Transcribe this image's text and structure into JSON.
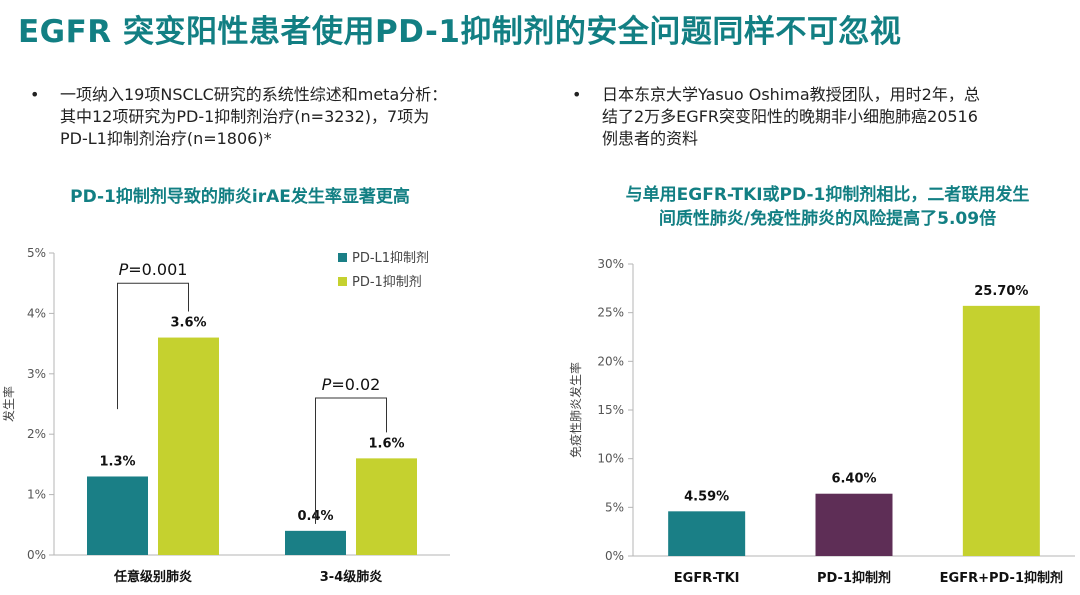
{
  "title": "EGFR 突变阳性患者使用PD-1抑制剂的安全问题同样不可忽视",
  "bullets": {
    "symbol": "•",
    "left": {
      "line1": "一项纳入19项NSCLC研究的系统性综述和meta分析：",
      "line2": "其中12项研究为PD-1抑制剂治疗(n=3232)，7项为",
      "line3": "PD-L1抑制剂治疗(n=1806)*"
    },
    "right": {
      "line1": "日本东京大学Yasuo Oshima教授团队，用时2年，总",
      "line2": "结了2万多EGFR突变阳性的晚期非小细胞肺癌20516",
      "line3": "例患者的资料"
    }
  },
  "subheads": {
    "left": "PD-1抑制剂导致的肺炎irAE发生率显著更高",
    "right_line1": "与单用EGFR-TKI或PD-1抑制剂相比，二者联用发生",
    "right_line2": "间质性肺炎/免疫性肺炎的风险提高了5.09倍"
  },
  "chart_data": [
    {
      "type": "bar",
      "ylabel": "发生率",
      "ylim": [
        0,
        5
      ],
      "yticks": [
        "0%",
        "1%",
        "2%",
        "3%",
        "4%",
        "5%"
      ],
      "categories": [
        "任意级别肺炎",
        "3-4级肺炎"
      ],
      "series": [
        {
          "name": "PD-L1抑制剂",
          "color": "#1a7f86",
          "values": [
            1.3,
            0.4
          ],
          "labels": [
            "1.3%",
            "0.4%"
          ]
        },
        {
          "name": "PD-1抑制剂",
          "color": "#c5d12f",
          "values": [
            3.6,
            1.6
          ],
          "labels": [
            "3.6%",
            "1.6%"
          ]
        }
      ],
      "pvalues": [
        {
          "italic": "P",
          "text": "=0.001"
        },
        {
          "italic": "P",
          "text": "=0.02"
        }
      ],
      "legend_position": "top-right"
    },
    {
      "type": "bar",
      "ylabel": "免疫性肺炎发生率",
      "ylim": [
        0,
        30
      ],
      "yticks": [
        "0%",
        "5%",
        "10%",
        "15%",
        "20%",
        "25%",
        "30%"
      ],
      "categories": [
        "EGFR-TKI",
        "PD-1抑制剂",
        "EGFR+PD-1抑制剂"
      ],
      "values": [
        4.59,
        6.4,
        25.7
      ],
      "labels": [
        "4.59%",
        "6.40%",
        "25.70%"
      ],
      "colors": [
        "#1a7f86",
        "#5e2e56",
        "#c5d12f"
      ]
    }
  ]
}
